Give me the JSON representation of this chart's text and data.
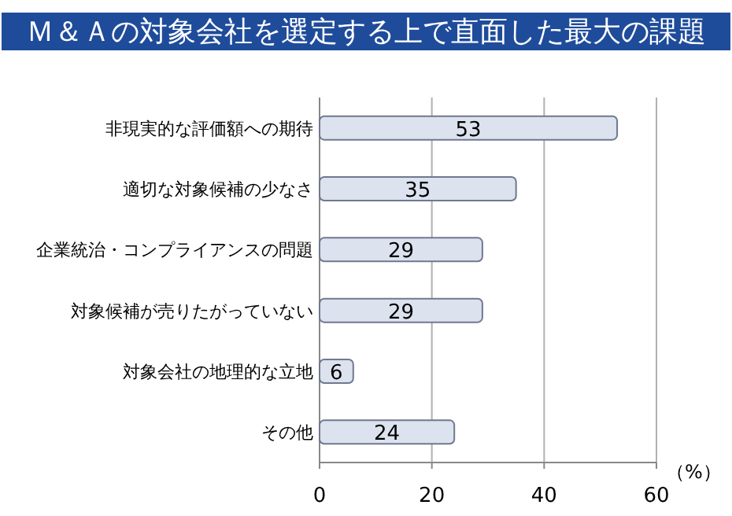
{
  "chart_data": {
    "type": "bar",
    "orientation": "horizontal",
    "title": "Ｍ＆Ａの対象会社を選定する上で直面した最大の課題",
    "xlabel": "（%）",
    "categories": [
      "非現実的な評価額への期待",
      "適切な対象候補の少なさ",
      "企業統治・コンプライアンスの問題",
      "対象候補が売りたがっていない",
      "対象会社の地理的な立地",
      "その他"
    ],
    "values": [
      53,
      35,
      29,
      29,
      6,
      24
    ],
    "color": "#dce2ee",
    "xlim": [
      0,
      60
    ],
    "xticks": [
      0,
      20,
      40,
      60
    ],
    "grid": "x",
    "data_labels": true
  }
}
